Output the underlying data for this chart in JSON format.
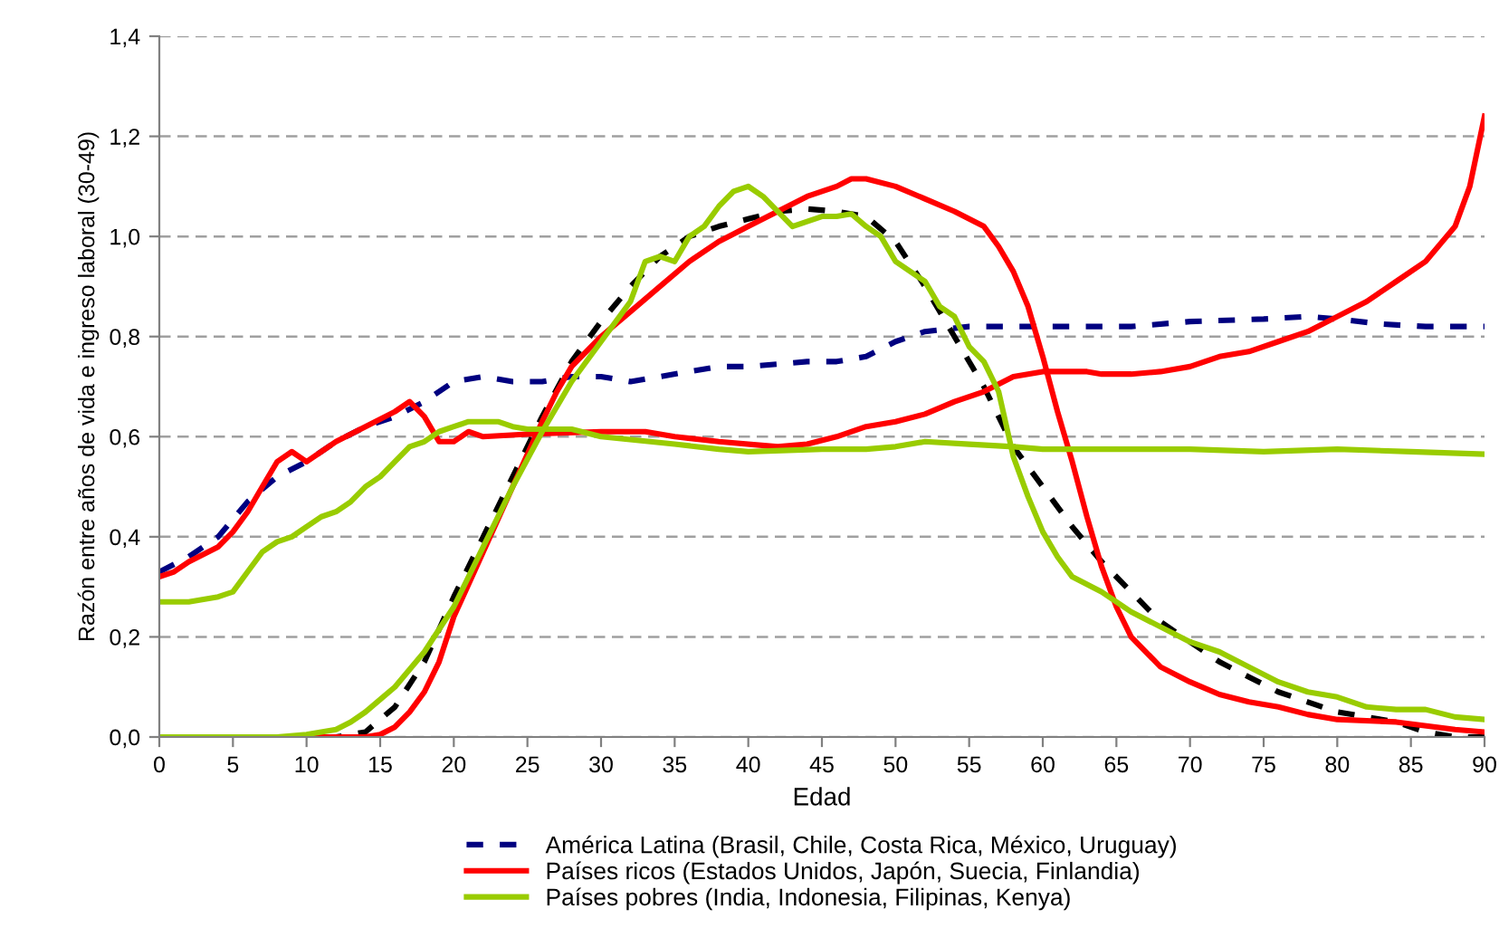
{
  "chart_data": {
    "type": "line",
    "xlabel": "Edad",
    "ylabel": "Razón entre años de vida e ingreso laboral (30-49)",
    "xlim": [
      0,
      90
    ],
    "ylim": [
      0,
      1.4
    ],
    "xticks": [
      0,
      5,
      10,
      15,
      20,
      25,
      30,
      35,
      40,
      45,
      50,
      55,
      60,
      65,
      70,
      75,
      80,
      85,
      90
    ],
    "yticks": [
      {
        "value": 0,
        "label": "0,0"
      },
      {
        "value": 0.2,
        "label": "0,2"
      },
      {
        "value": 0.4,
        "label": "0,4"
      },
      {
        "value": 0.6,
        "label": "0,6"
      },
      {
        "value": 0.8,
        "label": "0,8"
      },
      {
        "value": 1.0,
        "label": "1,0"
      },
      {
        "value": 1.2,
        "label": "1,2"
      },
      {
        "value": 1.4,
        "label": "1,4"
      }
    ],
    "grid": "y",
    "legend": "bottom",
    "marker": "none",
    "series": [
      {
        "name": "América Latina (Brasil, Chile, Costa Rica, México, Uruguay)",
        "color": "#000080",
        "line_style": "dashed",
        "x": [
          0,
          2,
          4,
          6,
          8,
          10,
          12,
          14,
          16,
          18,
          20,
          22,
          24,
          26,
          28,
          30,
          32,
          34,
          36,
          38,
          40,
          42,
          44,
          46,
          48,
          50,
          52,
          55,
          58,
          60,
          63,
          66,
          70,
          75,
          78,
          80,
          83,
          86,
          90
        ],
        "values": [
          0.33,
          0.36,
          0.4,
          0.47,
          0.52,
          0.55,
          0.59,
          0.62,
          0.64,
          0.67,
          0.71,
          0.72,
          0.71,
          0.71,
          0.72,
          0.72,
          0.71,
          0.72,
          0.73,
          0.74,
          0.74,
          0.745,
          0.75,
          0.75,
          0.76,
          0.79,
          0.81,
          0.82,
          0.82,
          0.82,
          0.82,
          0.82,
          0.83,
          0.835,
          0.84,
          0.835,
          0.825,
          0.82,
          0.82
        ]
      },
      {
        "color": "#000000",
        "line_style": "dashed",
        "x": [
          0,
          12,
          14,
          16,
          18,
          20,
          22,
          24,
          26,
          28,
          30,
          32,
          34,
          36,
          38,
          40,
          42,
          44,
          46,
          48,
          50,
          52,
          54,
          56,
          58,
          60,
          62,
          64,
          66,
          68,
          70,
          72,
          74,
          76,
          78,
          80,
          82,
          84,
          86,
          88,
          90
        ],
        "values": [
          0,
          0,
          0.01,
          0.06,
          0.15,
          0.28,
          0.4,
          0.52,
          0.64,
          0.75,
          0.83,
          0.9,
          0.96,
          1.0,
          1.02,
          1.035,
          1.05,
          1.055,
          1.05,
          1.04,
          0.99,
          0.9,
          0.8,
          0.7,
          0.58,
          0.5,
          0.42,
          0.35,
          0.29,
          0.23,
          0.19,
          0.15,
          0.12,
          0.09,
          0.07,
          0.05,
          0.04,
          0.03,
          0.01,
          0,
          0
        ]
      },
      {
        "name": "Países ricos (Estados Unidos, Japón, Suecia, Finlandia)",
        "color": "#ff0000",
        "line_style": "solid",
        "x": [
          0,
          1,
          2,
          4,
          5,
          6,
          7,
          8,
          9,
          10,
          11,
          12,
          14,
          16,
          17,
          18,
          19,
          20,
          21,
          22,
          25,
          30,
          33,
          35,
          38,
          42,
          44,
          46,
          48,
          50,
          52,
          54,
          56,
          58,
          60,
          63,
          64,
          66,
          68,
          70,
          72,
          74,
          76,
          78,
          80,
          82,
          84,
          86,
          88,
          89,
          90
        ],
        "values": [
          0.32,
          0.33,
          0.35,
          0.38,
          0.41,
          0.45,
          0.5,
          0.55,
          0.57,
          0.55,
          0.57,
          0.59,
          0.62,
          0.65,
          0.67,
          0.64,
          0.59,
          0.59,
          0.61,
          0.6,
          0.605,
          0.61,
          0.61,
          0.6,
          0.59,
          0.58,
          0.585,
          0.6,
          0.62,
          0.63,
          0.645,
          0.67,
          0.69,
          0.72,
          0.73,
          0.73,
          0.725,
          0.725,
          0.73,
          0.74,
          0.76,
          0.77,
          0.79,
          0.81,
          0.84,
          0.87,
          0.91,
          0.95,
          1.02,
          1.1,
          1.24
        ]
      },
      {
        "color": "#ff0000",
        "line_style": "solid",
        "x": [
          0,
          14,
          15,
          16,
          17,
          18,
          19,
          20,
          22,
          24,
          26,
          27,
          28,
          30,
          32,
          34,
          36,
          38,
          40,
          42,
          44,
          46,
          47,
          48,
          50,
          52,
          54,
          56,
          57,
          58,
          59,
          60,
          61,
          62,
          63,
          64,
          65,
          66,
          68,
          70,
          72,
          74,
          76,
          78,
          80,
          84,
          88,
          90
        ],
        "values": [
          0,
          0,
          0.005,
          0.02,
          0.05,
          0.09,
          0.15,
          0.24,
          0.37,
          0.5,
          0.63,
          0.69,
          0.74,
          0.8,
          0.85,
          0.9,
          0.95,
          0.99,
          1.02,
          1.05,
          1.08,
          1.1,
          1.115,
          1.115,
          1.1,
          1.075,
          1.05,
          1.02,
          0.98,
          0.93,
          0.86,
          0.76,
          0.65,
          0.55,
          0.44,
          0.34,
          0.26,
          0.2,
          0.14,
          0.11,
          0.085,
          0.07,
          0.06,
          0.045,
          0.035,
          0.03,
          0.015,
          0.01
        ]
      },
      {
        "name": "Países pobres (India, Indonesia, Filipinas, Kenya)",
        "color": "#99cc00",
        "line_style": "solid",
        "x": [
          0,
          2,
          4,
          5,
          6,
          7,
          8,
          9,
          10,
          11,
          12,
          13,
          14,
          15,
          16,
          17,
          18,
          19,
          20,
          21,
          22,
          23,
          24,
          25,
          27,
          28,
          30,
          35,
          38,
          40,
          45,
          48,
          50,
          52,
          55,
          58,
          60,
          65,
          70,
          75,
          80,
          85,
          90
        ],
        "values": [
          0.27,
          0.27,
          0.28,
          0.29,
          0.33,
          0.37,
          0.39,
          0.4,
          0.42,
          0.44,
          0.45,
          0.47,
          0.5,
          0.52,
          0.55,
          0.58,
          0.59,
          0.61,
          0.62,
          0.63,
          0.63,
          0.63,
          0.62,
          0.615,
          0.615,
          0.615,
          0.6,
          0.585,
          0.575,
          0.57,
          0.575,
          0.575,
          0.58,
          0.59,
          0.585,
          0.58,
          0.575,
          0.575,
          0.575,
          0.57,
          0.575,
          0.57,
          0.565
        ]
      },
      {
        "color": "#99cc00",
        "line_style": "solid",
        "x": [
          0,
          8,
          10,
          12,
          13,
          14,
          16,
          18,
          20,
          22,
          24,
          26,
          28,
          30,
          32,
          33,
          34,
          35,
          36,
          37,
          38,
          39,
          40,
          41,
          43,
          44,
          45,
          46,
          47,
          48,
          49,
          50,
          52,
          53,
          54,
          55,
          56,
          57,
          58,
          59,
          60,
          61,
          62,
          64,
          66,
          68,
          70,
          72,
          74,
          76,
          78,
          80,
          82,
          84,
          86,
          88,
          90
        ],
        "values": [
          0,
          0,
          0.005,
          0.015,
          0.03,
          0.05,
          0.1,
          0.17,
          0.26,
          0.38,
          0.5,
          0.61,
          0.71,
          0.79,
          0.87,
          0.95,
          0.96,
          0.95,
          1.0,
          1.02,
          1.06,
          1.09,
          1.1,
          1.08,
          1.02,
          1.03,
          1.04,
          1.04,
          1.045,
          1.02,
          1.0,
          0.95,
          0.91,
          0.86,
          0.84,
          0.78,
          0.75,
          0.69,
          0.56,
          0.48,
          0.41,
          0.36,
          0.32,
          0.29,
          0.25,
          0.22,
          0.19,
          0.17,
          0.14,
          0.11,
          0.09,
          0.08,
          0.06,
          0.055,
          0.055,
          0.04,
          0.035
        ]
      }
    ]
  }
}
